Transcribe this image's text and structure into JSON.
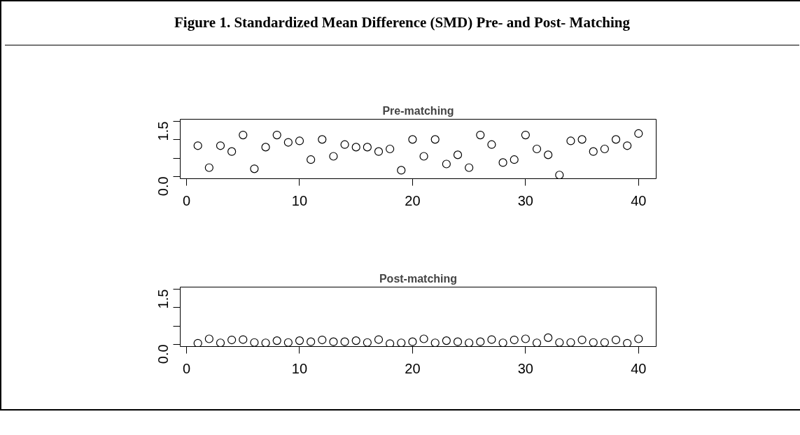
{
  "chart_data": [
    {
      "type": "scatter",
      "title": "Pre-matching",
      "annotations": [
        "Figure 1. Standardized Mean Difference (SMD) Pre- and Post- Matching"
      ],
      "x": [
        1,
        2,
        3,
        4,
        5,
        6,
        7,
        8,
        9,
        10,
        11,
        12,
        13,
        14,
        15,
        16,
        17,
        18,
        19,
        20,
        21,
        22,
        23,
        24,
        25,
        26,
        27,
        28,
        29,
        30,
        31,
        32,
        33,
        34,
        35,
        36,
        37,
        38,
        39,
        40
      ],
      "values": [
        0.84,
        0.24,
        0.84,
        0.68,
        1.13,
        0.21,
        0.8,
        1.13,
        0.93,
        0.97,
        0.46,
        1.01,
        0.55,
        0.87,
        0.8,
        0.8,
        0.68,
        0.75,
        0.17,
        1.01,
        0.55,
        1.01,
        0.34,
        0.59,
        0.24,
        1.13,
        0.87,
        0.38,
        0.46,
        1.13,
        0.75,
        0.59,
        0.04,
        0.97,
        1.01,
        0.68,
        0.75,
        1.01,
        0.84,
        1.17
      ],
      "color": "#000000",
      "marker": "circle",
      "grid": false,
      "xlim": [
        -0.56,
        41.56
      ],
      "ylim": [
        -0.06,
        1.56
      ],
      "xticks": [
        0,
        10,
        20,
        30,
        40
      ],
      "yticks": [
        {
          "value": 0,
          "label": "0.0"
        },
        {
          "value": 0.5,
          "label": null
        },
        {
          "value": 1,
          "label": null
        },
        {
          "value": 1.5,
          "label": "1.5"
        }
      ]
    },
    {
      "type": "scatter",
      "title": "Post-matching",
      "x": [
        1,
        2,
        3,
        4,
        5,
        6,
        7,
        8,
        9,
        10,
        11,
        12,
        13,
        14,
        15,
        16,
        17,
        18,
        19,
        20,
        21,
        22,
        23,
        24,
        25,
        26,
        27,
        28,
        29,
        30,
        31,
        32,
        33,
        34,
        35,
        36,
        37,
        38,
        39,
        40
      ],
      "values": [
        0.03,
        0.15,
        0.04,
        0.12,
        0.13,
        0.05,
        0.04,
        0.1,
        0.05,
        0.1,
        0.07,
        0.12,
        0.07,
        0.07,
        0.1,
        0.05,
        0.13,
        0.02,
        0.04,
        0.07,
        0.15,
        0.04,
        0.1,
        0.07,
        0.04,
        0.07,
        0.13,
        0.04,
        0.12,
        0.15,
        0.04,
        0.18,
        0.05,
        0.05,
        0.12,
        0.05,
        0.05,
        0.12,
        0.03,
        0.15
      ],
      "color": "#000000",
      "marker": "circle",
      "grid": false,
      "xlim": [
        -0.56,
        41.56
      ],
      "ylim": [
        -0.06,
        1.56
      ],
      "xticks": [
        0,
        10,
        20,
        30,
        40
      ],
      "yticks": [
        {
          "value": 0,
          "label": "0.0"
        },
        {
          "value": 0.5,
          "label": null
        },
        {
          "value": 1,
          "label": null
        },
        {
          "value": 1.5,
          "label": "1.5"
        }
      ]
    }
  ]
}
